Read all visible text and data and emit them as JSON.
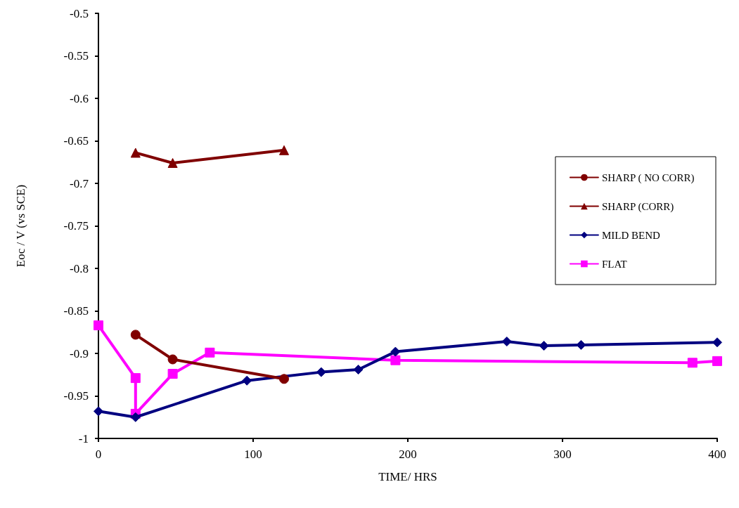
{
  "chart_data": {
    "type": "line",
    "xlabel": "TIME/ HRS",
    "ylabel": "Eoc / V (vs SCE)",
    "xlim": [
      0,
      400
    ],
    "xticks": [
      0,
      100,
      200,
      300,
      400
    ],
    "ylim": [
      -1,
      -0.5
    ],
    "yticks": [
      -1,
      -0.95,
      -0.9,
      -0.85,
      -0.8,
      -0.75,
      -0.7,
      -0.65,
      -0.6,
      -0.55,
      -0.5
    ],
    "grid": false,
    "legend": "right",
    "line_style": "solid",
    "series": [
      {
        "name": "SHARP ( NO CORR)",
        "color": "#800000",
        "marker": "circle",
        "x": [
          24,
          48,
          120
        ],
        "values": [
          -0.878,
          -0.907,
          -0.93
        ]
      },
      {
        "name": "SHARP (CORR)",
        "color": "#800000",
        "marker": "triangle",
        "x": [
          24,
          48,
          120
        ],
        "values": [
          -0.664,
          -0.676,
          -0.661
        ]
      },
      {
        "name": "MILD BEND",
        "color": "#000080",
        "marker": "diamond",
        "x": [
          0,
          24,
          96,
          144,
          168,
          192,
          264,
          288,
          312,
          400
        ],
        "values": [
          -0.968,
          -0.975,
          -0.932,
          -0.922,
          -0.919,
          -0.898,
          -0.886,
          -0.891,
          -0.89,
          -0.887
        ]
      },
      {
        "name": "FLAT",
        "color": "#ff00ff",
        "marker": "square",
        "x": [
          0,
          24,
          24,
          48,
          72,
          192,
          384,
          400
        ],
        "values": [
          -0.867,
          -0.929,
          -0.971,
          -0.924,
          -0.899,
          -0.908,
          -0.911,
          -0.909
        ]
      }
    ]
  }
}
